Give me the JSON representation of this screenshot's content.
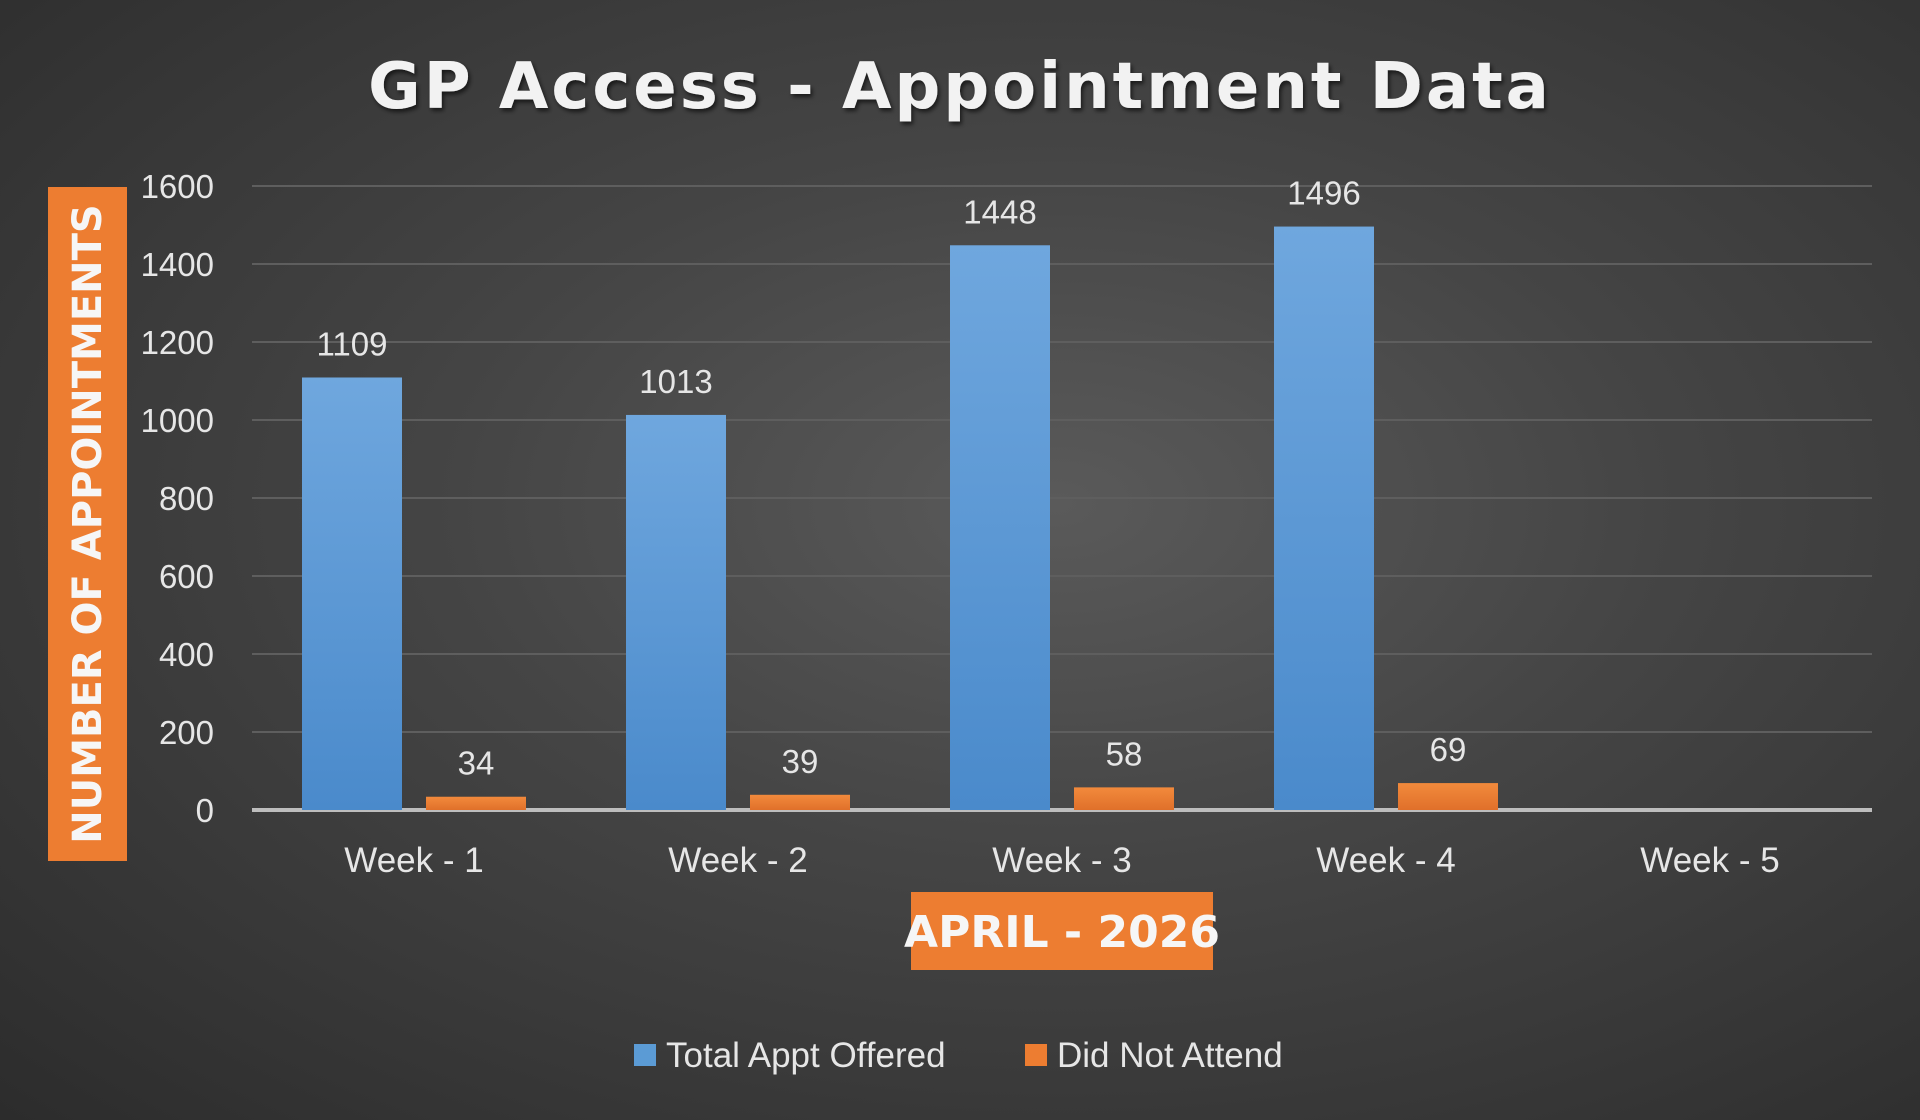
{
  "chart_data": {
    "type": "bar",
    "title": "GP Access - Appointment Data",
    "xlabel": "APRIL - 2026",
    "ylabel": "NUMBER OF APPOINTMENTS",
    "categories": [
      "Week - 1",
      "Week - 2",
      "Week - 3",
      "Week - 4",
      "Week - 5"
    ],
    "series": [
      {
        "name": "Total Appt Offered",
        "color": "#5b9bd5",
        "values": [
          1109,
          1013,
          1448,
          1496,
          null
        ]
      },
      {
        "name": "Did Not Attend",
        "color": "#ed7d31",
        "values": [
          34,
          39,
          58,
          69,
          null
        ]
      }
    ],
    "ylim": [
      0,
      1600
    ],
    "yticks": [
      0,
      200,
      400,
      600,
      800,
      1000,
      1200,
      1400,
      1600
    ],
    "grid": true,
    "legend": "bottom",
    "data_labels": true,
    "axis_title_color": "#ed7d31"
  }
}
